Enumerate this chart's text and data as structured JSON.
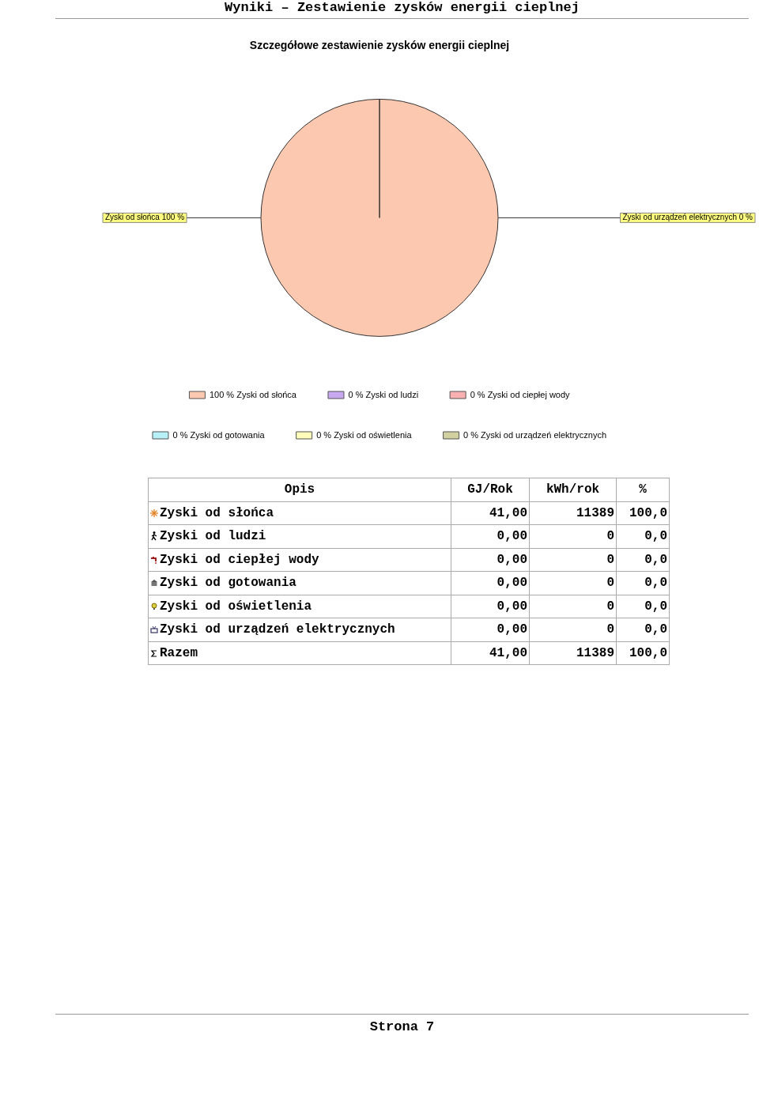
{
  "chart_data": [
    {
      "type": "pie",
      "title": "Szczegółowe zestawienie zysków energii cieplnej",
      "categories": [
        "Zyski od słońca",
        "Zyski od ludzi",
        "Zyski od ciepłej wody",
        "Zyski od gotowania",
        "Zyski od oświetlenia",
        "Zyski od urządzeń elektrycznych"
      ],
      "values": [
        100,
        0,
        0,
        0,
        0,
        0
      ],
      "value_labels": [
        "100 %",
        "0 %",
        "0 %",
        "0 %",
        "0 %",
        "0 %"
      ],
      "colors": [
        "#fdc8b0",
        "#c8a8f0",
        "#f8b0b0",
        "#b8f0f8",
        "#fdfcb8",
        "#d0d0a0"
      ],
      "legend": "bottom",
      "annotations": [
        "Zyski od słońca 100 %",
        "Zyski od urządzeń elektrycznych 0 %",
        "Wyniki – Zestawienie zysków energii cieplnej",
        "Strona 7"
      ]
    },
    {
      "type": "other",
      "xlabel": "Opis",
      "categories": [
        "Zyski od słońca",
        "Zyski od ludzi",
        "Zyski od ciepłej wody",
        "Zyski od gotowania",
        "Zyski od oświetlenia",
        "Zyski od urządzeń elektrycznych",
        "Razem"
      ],
      "series": [
        {
          "name": "GJ/Rok",
          "values": [
            41,
            0,
            0,
            0,
            0,
            0,
            41
          ],
          "value_labels": [
            "41,00",
            "0,00",
            "0,00",
            "0,00",
            "0,00",
            "0,00",
            "41,00"
          ]
        },
        {
          "name": "kWh/rok",
          "values": [
            11389,
            0,
            0,
            0,
            0,
            0,
            11389
          ],
          "value_labels": [
            "11389",
            "0",
            "0",
            "0",
            "0",
            "0",
            "11389"
          ]
        },
        {
          "name": "%",
          "values": [
            100,
            0,
            0,
            0,
            0,
            0,
            100
          ],
          "value_labels": [
            "100,0",
            "0,0",
            "0,0",
            "0,0",
            "0,0",
            "0,0",
            "100,0"
          ]
        }
      ]
    }
  ]
}
